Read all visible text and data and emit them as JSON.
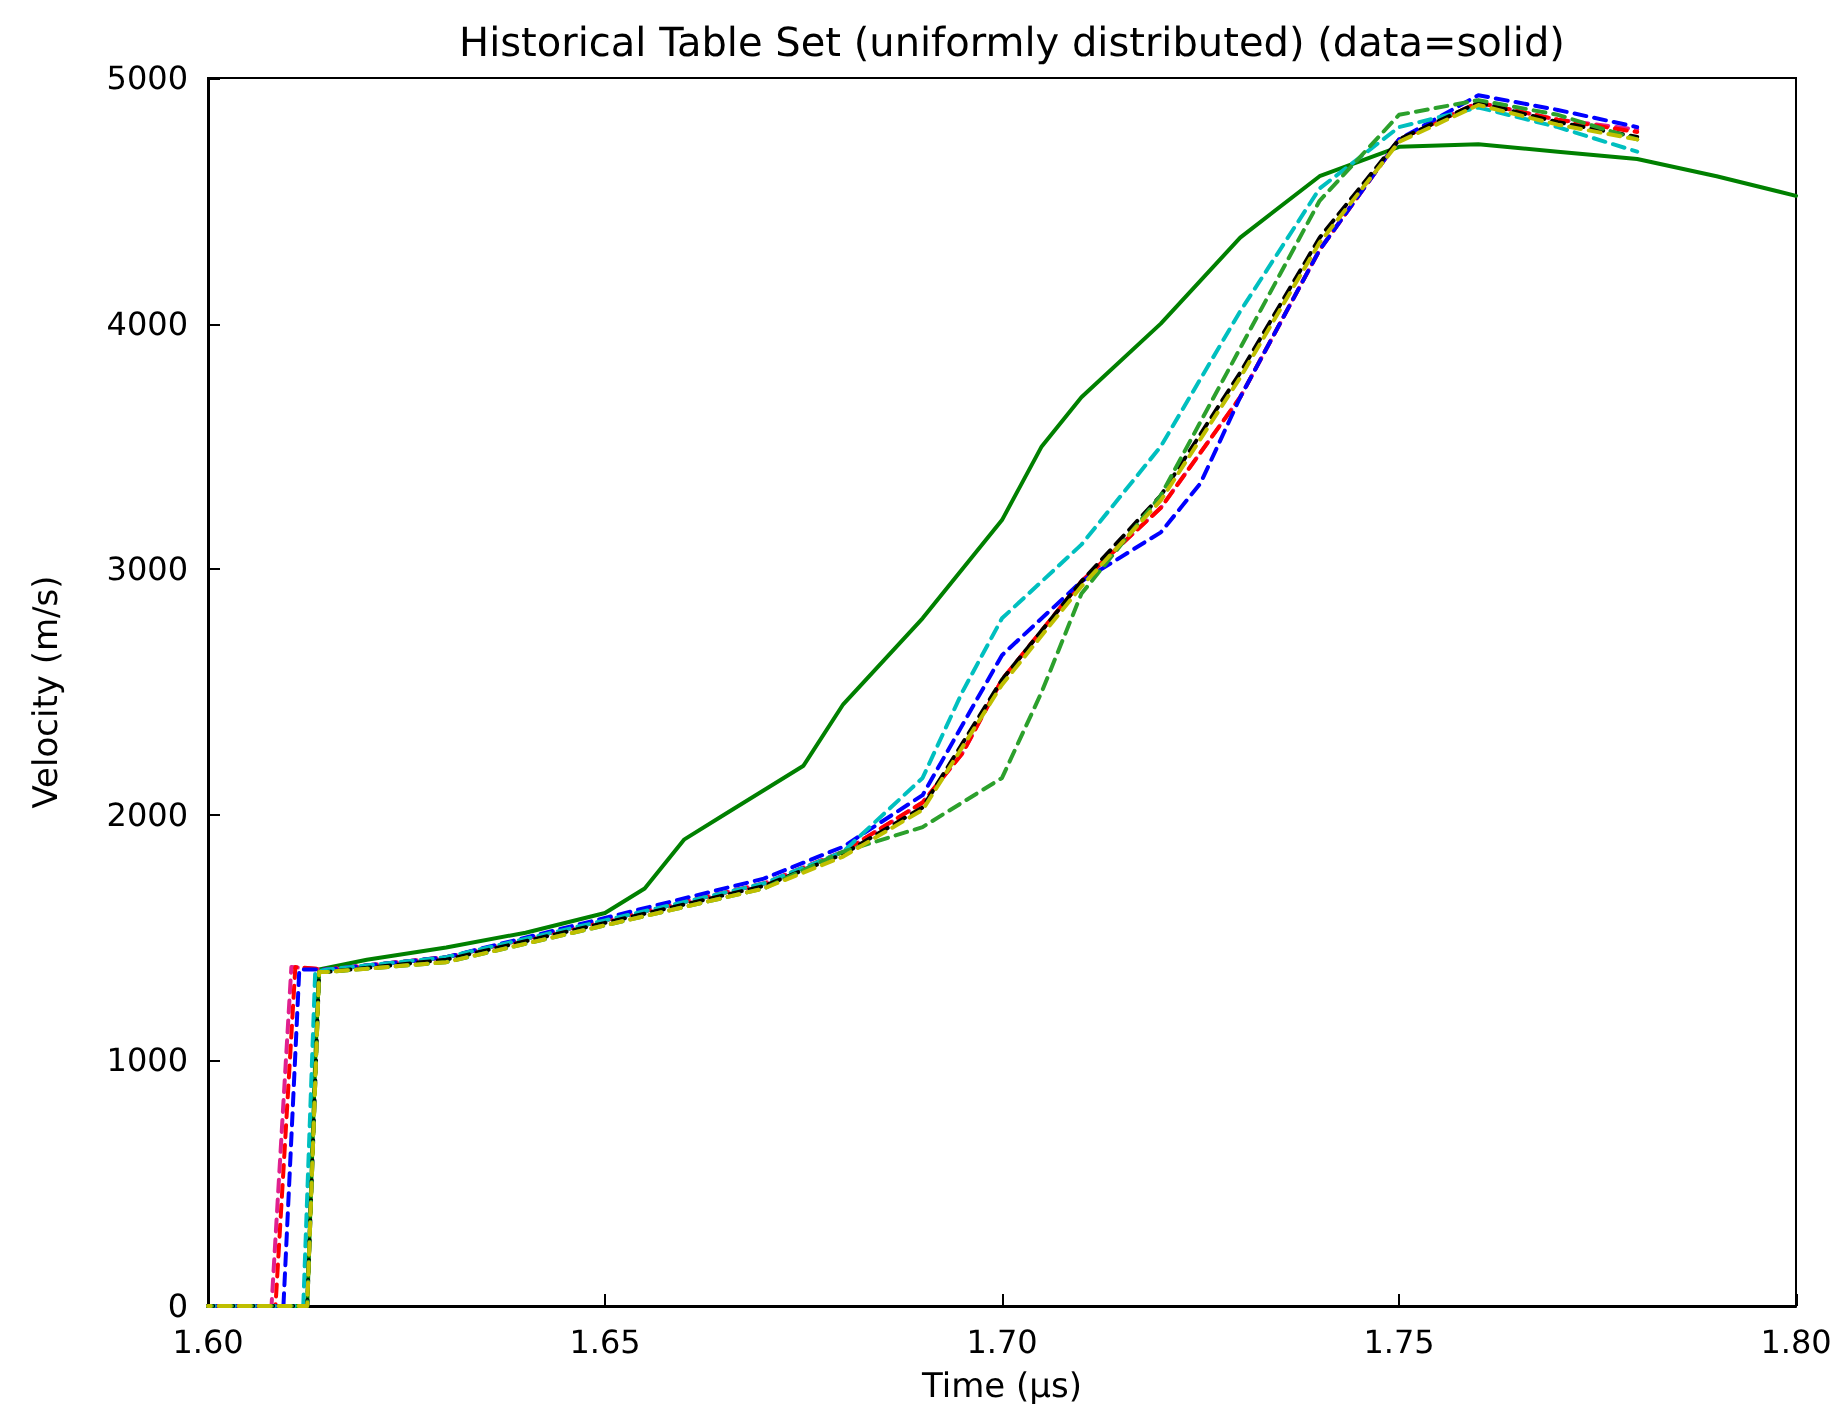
{
  "chart_data": {
    "type": "line",
    "title": "Historical Table Set (uniformly distributed) (data=solid)",
    "xlabel": "Time (μs)",
    "ylabel": "Velocity (m/s)",
    "xlim": [
      1.6,
      1.8
    ],
    "xticks": [
      {
        "value": 1.6,
        "label": "1.60"
      },
      {
        "value": 1.65,
        "label": "1.65"
      },
      {
        "value": 1.7,
        "label": "1.70"
      },
      {
        "value": 1.75,
        "label": "1.75"
      },
      {
        "value": 1.8,
        "label": "1.80"
      }
    ],
    "ylim": [
      0,
      5000
    ],
    "yticks": [
      0,
      1000,
      2000,
      3000,
      4000,
      5000
    ],
    "grid": false,
    "marker": "none",
    "series": [
      {
        "color": "#008000",
        "line_style": "solid",
        "x": [
          1.6,
          1.6125,
          1.6135,
          1.614,
          1.62,
          1.63,
          1.64,
          1.65,
          1.655,
          1.66,
          1.665,
          1.675,
          1.68,
          1.69,
          1.7,
          1.705,
          1.71,
          1.72,
          1.73,
          1.74,
          1.75,
          1.76,
          1.77,
          1.78,
          1.79,
          1.8
        ],
        "values": [
          0,
          0,
          1000,
          1370,
          1410,
          1460,
          1520,
          1600,
          1700,
          1900,
          2000,
          2200,
          2450,
          2800,
          3200,
          3500,
          3700,
          4000,
          4350,
          4600,
          4720,
          4730,
          4700,
          4670,
          4600,
          4520
        ]
      },
      {
        "color": "#e0208f",
        "line_style": "dashed",
        "x": [
          1.6,
          1.608,
          1.6105,
          1.615,
          1.63,
          1.65,
          1.67,
          1.68,
          1.69,
          1.695,
          1.7,
          1.71,
          1.72,
          1.73,
          1.74,
          1.75,
          1.76,
          1.77,
          1.78
        ],
        "values": [
          0,
          0,
          1380,
          1370,
          1420,
          1570,
          1720,
          1850,
          2050,
          2250,
          2550,
          2950,
          3250,
          3700,
          4300,
          4750,
          4900,
          4830,
          4790
        ]
      },
      {
        "color": "#ff0000",
        "line_style": "dashed",
        "x": [
          1.6,
          1.6085,
          1.611,
          1.615,
          1.63,
          1.65,
          1.67,
          1.68,
          1.69,
          1.695,
          1.7,
          1.71,
          1.72,
          1.73,
          1.74,
          1.75,
          1.76,
          1.77,
          1.78
        ],
        "values": [
          0,
          0,
          1380,
          1370,
          1420,
          1570,
          1720,
          1850,
          2050,
          2250,
          2550,
          2950,
          3250,
          3700,
          4300,
          4750,
          4900,
          4830,
          4780
        ]
      },
      {
        "color": "#0000ff",
        "line_style": "dashed",
        "x": [
          1.6,
          1.6095,
          1.6115,
          1.615,
          1.63,
          1.65,
          1.67,
          1.68,
          1.69,
          1.7,
          1.71,
          1.72,
          1.725,
          1.73,
          1.74,
          1.75,
          1.76,
          1.77,
          1.78
        ],
        "values": [
          0,
          0,
          1370,
          1370,
          1420,
          1580,
          1740,
          1870,
          2080,
          2650,
          2950,
          3150,
          3350,
          3700,
          4300,
          4750,
          4930,
          4870,
          4800
        ]
      },
      {
        "color": "#00bfbf",
        "line_style": "dashed",
        "x": [
          1.6,
          1.612,
          1.6135,
          1.615,
          1.63,
          1.65,
          1.67,
          1.68,
          1.69,
          1.695,
          1.7,
          1.71,
          1.72,
          1.73,
          1.74,
          1.75,
          1.76,
          1.77,
          1.78
        ],
        "values": [
          0,
          0,
          1360,
          1370,
          1420,
          1570,
          1720,
          1850,
          2150,
          2500,
          2800,
          3100,
          3500,
          4050,
          4550,
          4800,
          4880,
          4800,
          4700
        ]
      },
      {
        "color": "#000000",
        "line_style": "dashed",
        "x": [
          1.6,
          1.6125,
          1.614,
          1.615,
          1.63,
          1.65,
          1.67,
          1.68,
          1.69,
          1.7,
          1.71,
          1.72,
          1.73,
          1.74,
          1.75,
          1.76,
          1.77,
          1.78
        ],
        "values": [
          0,
          0,
          1360,
          1360,
          1410,
          1560,
          1710,
          1840,
          2030,
          2550,
          2950,
          3300,
          3800,
          4350,
          4750,
          4900,
          4820,
          4760
        ]
      },
      {
        "color": "#2ca02c",
        "line_style": "dashed",
        "x": [
          1.6,
          1.6125,
          1.614,
          1.615,
          1.63,
          1.65,
          1.67,
          1.68,
          1.69,
          1.7,
          1.705,
          1.71,
          1.72,
          1.73,
          1.74,
          1.75,
          1.76,
          1.77,
          1.78
        ],
        "values": [
          0,
          0,
          1360,
          1360,
          1400,
          1550,
          1700,
          1850,
          1950,
          2150,
          2500,
          2900,
          3300,
          3900,
          4500,
          4850,
          4910,
          4850,
          4750
        ]
      },
      {
        "color": "#bfbf00",
        "line_style": "dashed",
        "x": [
          1.6,
          1.6125,
          1.614,
          1.615,
          1.63,
          1.65,
          1.67,
          1.68,
          1.69,
          1.7,
          1.71,
          1.72,
          1.73,
          1.74,
          1.75,
          1.76,
          1.77,
          1.78
        ],
        "values": [
          0,
          0,
          1360,
          1360,
          1400,
          1550,
          1700,
          1830,
          2020,
          2530,
          2930,
          3280,
          3780,
          4330,
          4740,
          4890,
          4810,
          4750
        ]
      }
    ]
  }
}
